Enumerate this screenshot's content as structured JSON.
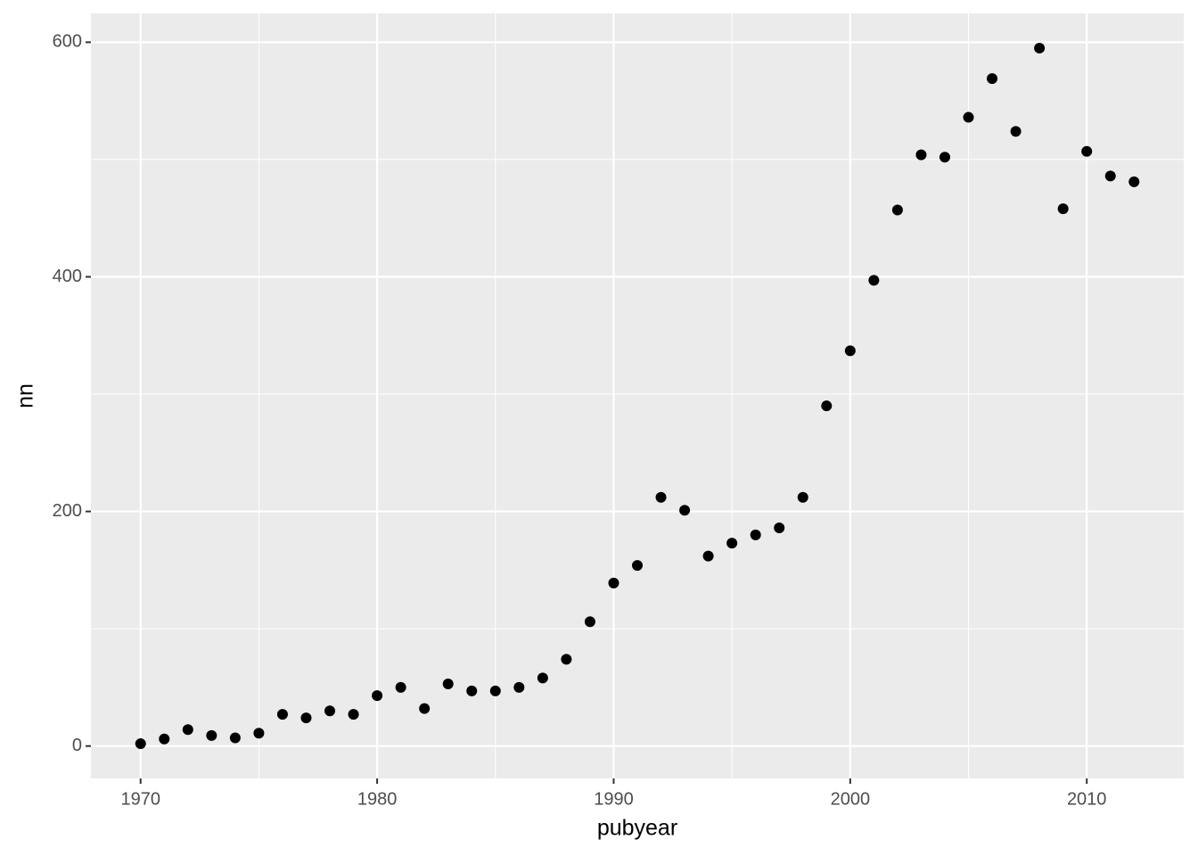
{
  "chart_data": {
    "type": "scatter",
    "x_label": "pubyear",
    "y_label": "nn",
    "x": [
      1970,
      1971,
      1972,
      1973,
      1974,
      1975,
      1976,
      1977,
      1978,
      1979,
      1980,
      1981,
      1982,
      1983,
      1984,
      1985,
      1986,
      1987,
      1988,
      1989,
      1990,
      1991,
      1992,
      1993,
      1994,
      1995,
      1996,
      1997,
      1998,
      1999,
      2000,
      2001,
      2002,
      2003,
      2004,
      2005,
      2006,
      2007,
      2008,
      2009,
      2010,
      2011,
      2012
    ],
    "values": [
      2,
      6,
      14,
      9,
      7,
      11,
      27,
      24,
      30,
      27,
      43,
      50,
      32,
      53,
      47,
      47,
      50,
      58,
      74,
      106,
      139,
      154,
      212,
      201,
      162,
      173,
      180,
      186,
      212,
      290,
      337,
      397,
      457,
      504,
      502,
      536,
      569,
      524,
      595,
      458,
      507,
      486,
      481
    ],
    "color": "#000000",
    "xlim": [
      1967.9,
      2014.1
    ],
    "xticks": [
      1970,
      1980,
      1990,
      2000,
      2010
    ],
    "ylim": [
      -27.6,
      624.6
    ],
    "yticks": [
      0,
      200,
      400,
      600
    ],
    "grid": true
  }
}
